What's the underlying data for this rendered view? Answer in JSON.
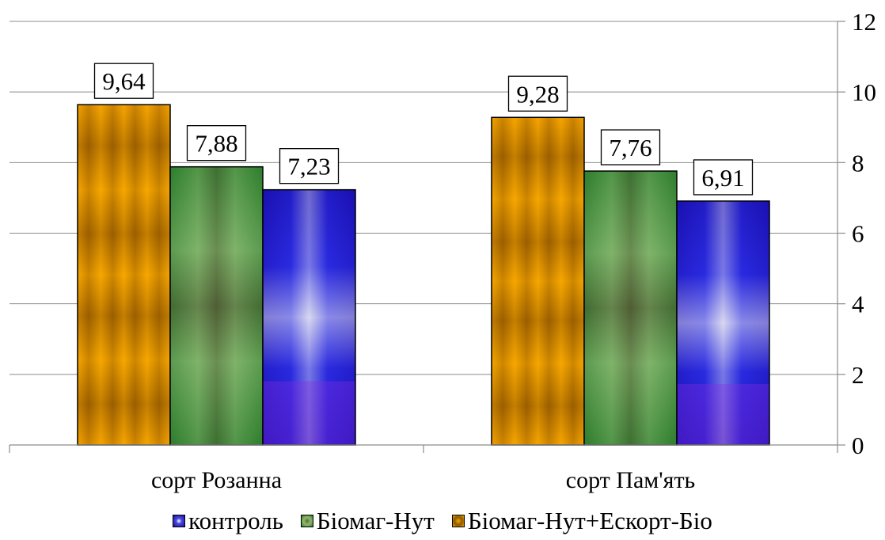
{
  "colors": {
    "series_base": [
      "#F0A000",
      "#3C8A3C",
      "#4A1FD0"
    ]
  },
  "chart_data": {
    "type": "bar",
    "categories": [
      "сорт Розанна",
      "сорт Пам'ять"
    ],
    "series": [
      {
        "name": "Біомаг-Нут+Ескорт-Біо",
        "values": [
          9.64,
          9.28
        ],
        "labels": [
          "9,64",
          "9,28"
        ]
      },
      {
        "name": "Біомаг-Нут",
        "values": [
          7.88,
          7.76
        ],
        "labels": [
          "7,88",
          "7,76"
        ]
      },
      {
        "name": "контроль",
        "values": [
          7.23,
          6.91
        ],
        "labels": [
          "7,23",
          "6,91"
        ]
      }
    ],
    "ylim": [
      0,
      12
    ],
    "yticks": [
      "0",
      "2",
      "4",
      "6",
      "8",
      "10",
      "12"
    ],
    "y_axis_side": "right",
    "grid": true,
    "legend": {
      "position": "bottom",
      "order": [
        "контроль",
        "Біомаг-Нут",
        "Біомаг-Нут+Ескорт-Біо"
      ]
    }
  }
}
